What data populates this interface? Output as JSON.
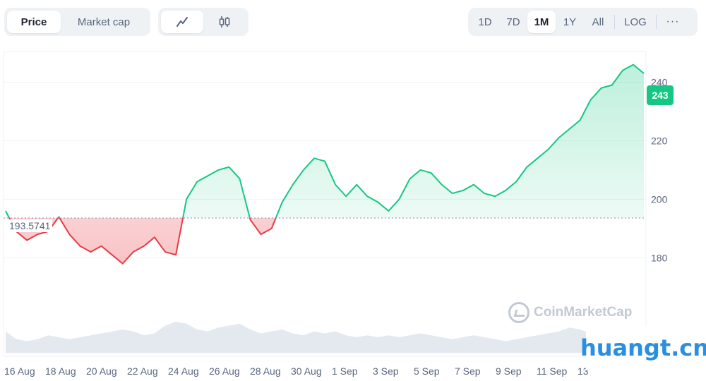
{
  "toolbar": {
    "type_tabs": [
      {
        "label": "Price",
        "active": true
      },
      {
        "label": "Market cap",
        "active": false
      }
    ],
    "view_icons": [
      {
        "icon": "line-chart-icon",
        "active": true
      },
      {
        "icon": "candlestick-icon",
        "active": false
      }
    ],
    "ranges": [
      {
        "label": "1D",
        "active": false
      },
      {
        "label": "7D",
        "active": false
      },
      {
        "label": "1M",
        "active": true
      },
      {
        "label": "1Y",
        "active": false
      },
      {
        "label": "All",
        "active": false
      }
    ],
    "log_label": "LOG",
    "more_label": "···"
  },
  "current_price_label": "243",
  "baseline_label": "193.5741",
  "watermark": "CoinMarketCap",
  "stamp": "huangt.cn",
  "colors": {
    "up": "#16c784",
    "down": "#ea3943",
    "accent": "#16c784"
  },
  "chart_data": {
    "type": "line",
    "title": "",
    "xlabel": "",
    "ylabel": "",
    "baseline": 193.5741,
    "ylim": [
      162,
      250
    ],
    "yticks": [
      160,
      180,
      200,
      220,
      240
    ],
    "x_tick_labels": [
      "16 Aug",
      "18 Aug",
      "20 Aug",
      "22 Aug",
      "24 Aug",
      "26 Aug",
      "28 Aug",
      "30 Aug",
      "1 Sep",
      "3 Sep",
      "5 Sep",
      "7 Sep",
      "9 Sep",
      "11 Sep",
      "13"
    ],
    "x_start": "2024-08-15",
    "x_end": "2024-09-14",
    "series": [
      {
        "dates": [
          "2024-08-15",
          "2024-08-15 12:00",
          "2024-08-16",
          "2024-08-16 12:00",
          "2024-08-17",
          "2024-08-17 12:00",
          "2024-08-18",
          "2024-08-18 12:00",
          "2024-08-19",
          "2024-08-19 12:00",
          "2024-08-20",
          "2024-08-20 12:00",
          "2024-08-21",
          "2024-08-21 12:00",
          "2024-08-22",
          "2024-08-22 12:00",
          "2024-08-23",
          "2024-08-23 12:00",
          "2024-08-24",
          "2024-08-24 12:00",
          "2024-08-25",
          "2024-08-25 12:00",
          "2024-08-26",
          "2024-08-26 12:00",
          "2024-08-27",
          "2024-08-27 12:00",
          "2024-08-28",
          "2024-08-28 12:00",
          "2024-08-29",
          "2024-08-29 12:00",
          "2024-08-30",
          "2024-08-30 12:00",
          "2024-08-31",
          "2024-08-31 12:00",
          "2024-09-01",
          "2024-09-01 12:00",
          "2024-09-02",
          "2024-09-02 12:00",
          "2024-09-03",
          "2024-09-03 12:00",
          "2024-09-04",
          "2024-09-04 12:00",
          "2024-09-05",
          "2024-09-05 12:00",
          "2024-09-06",
          "2024-09-06 12:00",
          "2024-09-07",
          "2024-09-07 12:00",
          "2024-09-08",
          "2024-09-08 12:00",
          "2024-09-09",
          "2024-09-09 12:00",
          "2024-09-10",
          "2024-09-10 12:00",
          "2024-09-11",
          "2024-09-11 12:00",
          "2024-09-12",
          "2024-09-12 12:00",
          "2024-09-13",
          "2024-09-13 12:00",
          "2024-09-14"
        ],
        "values": [
          196,
          189,
          186,
          188,
          189,
          194,
          188,
          184,
          182,
          184,
          181,
          178,
          182,
          184,
          187,
          182,
          181,
          200,
          206,
          208,
          210,
          211,
          207,
          193,
          188,
          190,
          199,
          205,
          210,
          214,
          213,
          205,
          201,
          205,
          201,
          199,
          196,
          200,
          207,
          210,
          209,
          205,
          202,
          203,
          205,
          202,
          201,
          203,
          206,
          211,
          214,
          217,
          221,
          224,
          227,
          234,
          238,
          239,
          244,
          246,
          243
        ]
      }
    ],
    "volume": [
      0.55,
      0.35,
      0.3,
      0.35,
      0.45,
      0.4,
      0.35,
      0.4,
      0.45,
      0.5,
      0.55,
      0.6,
      0.55,
      0.45,
      0.5,
      0.7,
      0.8,
      0.75,
      0.6,
      0.55,
      0.65,
      0.7,
      0.75,
      0.6,
      0.5,
      0.55,
      0.6,
      0.5,
      0.45,
      0.55,
      0.5,
      0.55,
      0.45,
      0.4,
      0.45,
      0.4,
      0.45,
      0.4,
      0.45,
      0.5,
      0.45,
      0.4,
      0.35,
      0.4,
      0.45,
      0.4,
      0.35,
      0.3,
      0.35,
      0.4,
      0.45,
      0.5,
      0.55,
      0.65,
      0.6,
      0.5,
      0.55,
      0.6,
      0.55,
      0.5,
      0.55
    ]
  }
}
